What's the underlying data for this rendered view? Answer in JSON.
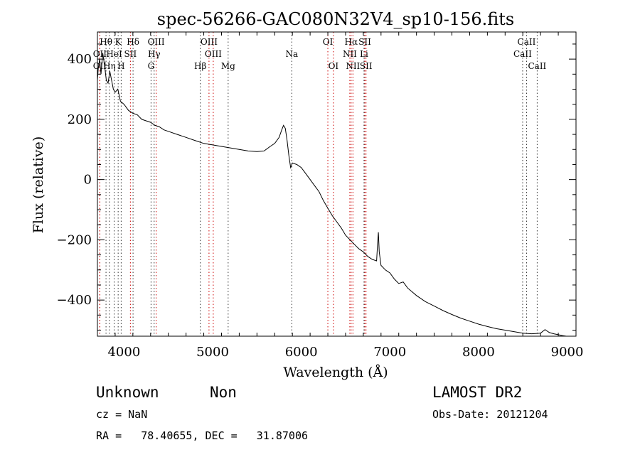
{
  "colors": {
    "axes": "#000000",
    "spectrum": "#000000",
    "emission_line": "#cc0000",
    "absorption_line": "#333333"
  },
  "footer": {
    "object_class": "Unknown",
    "subclass": "Non",
    "survey": "LAMOST DR2",
    "redshift": "cz = NaN",
    "obs_date": "Obs-Date: 20121204",
    "coords": "RA =   78.40655, DEC =   31.87006"
  },
  "chart_data": {
    "type": "line",
    "title": "spec-56266-GAC080N32V4_sp10-156.fits",
    "xlabel": "Wavelength (Å)",
    "ylabel": "Flux (relative)",
    "xlim": [
      3700,
      9100
    ],
    "ylim": [
      -520,
      490
    ],
    "x_ticks": [
      4000,
      5000,
      6000,
      7000,
      8000,
      9000
    ],
    "y_ticks": [
      -400,
      -200,
      0,
      200,
      400
    ],
    "grid": false,
    "series": [
      {
        "x": [
          3700,
          3710,
          3725,
          3740,
          3760,
          3780,
          3800,
          3820,
          3840,
          3860,
          3880,
          3900,
          3930,
          3960,
          4000,
          4050,
          4100,
          4150,
          4200,
          4250,
          4300,
          4350,
          4400,
          4450,
          4500,
          4600,
          4700,
          4800,
          4900,
          5000,
          5100,
          5200,
          5300,
          5400,
          5500,
          5580,
          5650,
          5700,
          5750,
          5780,
          5800,
          5820,
          5840,
          5860,
          5880,
          5900,
          5950,
          6000,
          6050,
          6100,
          6150,
          6200,
          6250,
          6300,
          6350,
          6400,
          6450,
          6500,
          6550,
          6600,
          6650,
          6700,
          6750,
          6800,
          6850,
          6860,
          6870,
          6880,
          6900,
          6950,
          7000,
          7050,
          7100,
          7150,
          7200,
          7300,
          7400,
          7500,
          7600,
          7700,
          7800,
          7900,
          8000,
          8100,
          8200,
          8300,
          8400,
          8500,
          8600,
          8700,
          8750,
          8800,
          8850,
          8900,
          8950,
          8990
        ],
        "values": [
          330,
          370,
          400,
          350,
          420,
          380,
          330,
          320,
          360,
          330,
          300,
          290,
          300,
          260,
          250,
          230,
          220,
          215,
          200,
          195,
          190,
          180,
          175,
          165,
          160,
          150,
          140,
          130,
          120,
          115,
          110,
          105,
          100,
          95,
          93,
          95,
          110,
          120,
          140,
          165,
          180,
          170,
          130,
          80,
          40,
          55,
          50,
          40,
          20,
          0,
          -20,
          -40,
          -70,
          -95,
          -120,
          -140,
          -160,
          -185,
          -200,
          -215,
          -230,
          -240,
          -255,
          -265,
          -270,
          -220,
          -175,
          -240,
          -285,
          -300,
          -310,
          -330,
          -345,
          -340,
          -360,
          -385,
          -405,
          -420,
          -435,
          -448,
          -460,
          -470,
          -480,
          -488,
          -495,
          -500,
          -505,
          -510,
          -512,
          -510,
          -498,
          -508,
          -512,
          -515,
          -518,
          -520
        ]
      }
    ],
    "line_markers": [
      {
        "label": "Hθ",
        "x": 3797,
        "row": 0,
        "emission": false
      },
      {
        "label": "K",
        "x": 3934,
        "row": 0,
        "emission": false
      },
      {
        "label": "Hδ",
        "x": 4102,
        "row": 0,
        "emission": false
      },
      {
        "label": "OIII",
        "x": 4363,
        "row": 0,
        "emission": true
      },
      {
        "label": "OIII",
        "x": 4959,
        "row": 0,
        "emission": true
      },
      {
        "label": "OI",
        "x": 6300,
        "row": 0,
        "emission": true
      },
      {
        "label": "Hα",
        "x": 6563,
        "row": 0,
        "emission": true
      },
      {
        "label": "SII",
        "x": 6717,
        "row": 0,
        "emission": true
      },
      {
        "label": "CaII",
        "x": 8542,
        "row": 0,
        "emission": false
      },
      {
        "label": "OII",
        "x": 3727,
        "row": 1,
        "emission": true
      },
      {
        "label": "HeI",
        "x": 3889,
        "row": 1,
        "emission": false
      },
      {
        "label": "SII",
        "x": 4072,
        "row": 1,
        "emission": true
      },
      {
        "label": "Hγ",
        "x": 4340,
        "row": 1,
        "emission": false
      },
      {
        "label": "OIII",
        "x": 5007,
        "row": 1,
        "emission": true
      },
      {
        "label": "Na",
        "x": 5893,
        "row": 1,
        "emission": false
      },
      {
        "label": "NII",
        "x": 6548,
        "row": 1,
        "emission": true
      },
      {
        "label": "Li",
        "x": 6708,
        "row": 1,
        "emission": false
      },
      {
        "label": "CaII",
        "x": 8498,
        "row": 1,
        "emission": false
      },
      {
        "label": "OII",
        "x": 3727,
        "row": 2,
        "emission": true
      },
      {
        "label": "Hη",
        "x": 3835,
        "row": 2,
        "emission": false
      },
      {
        "label": "H",
        "x": 3968,
        "row": 2,
        "emission": false
      },
      {
        "label": "G",
        "x": 4305,
        "row": 2,
        "emission": false
      },
      {
        "label": "Hβ",
        "x": 4861,
        "row": 2,
        "emission": false
      },
      {
        "label": "Mg",
        "x": 5175,
        "row": 2,
        "emission": false
      },
      {
        "label": "OI",
        "x": 6363,
        "row": 2,
        "emission": true
      },
      {
        "label": "NII",
        "x": 6583,
        "row": 2,
        "emission": true
      },
      {
        "label": "SII",
        "x": 6731,
        "row": 2,
        "emission": true
      },
      {
        "label": "CaII",
        "x": 8662,
        "row": 2,
        "emission": false
      }
    ]
  }
}
